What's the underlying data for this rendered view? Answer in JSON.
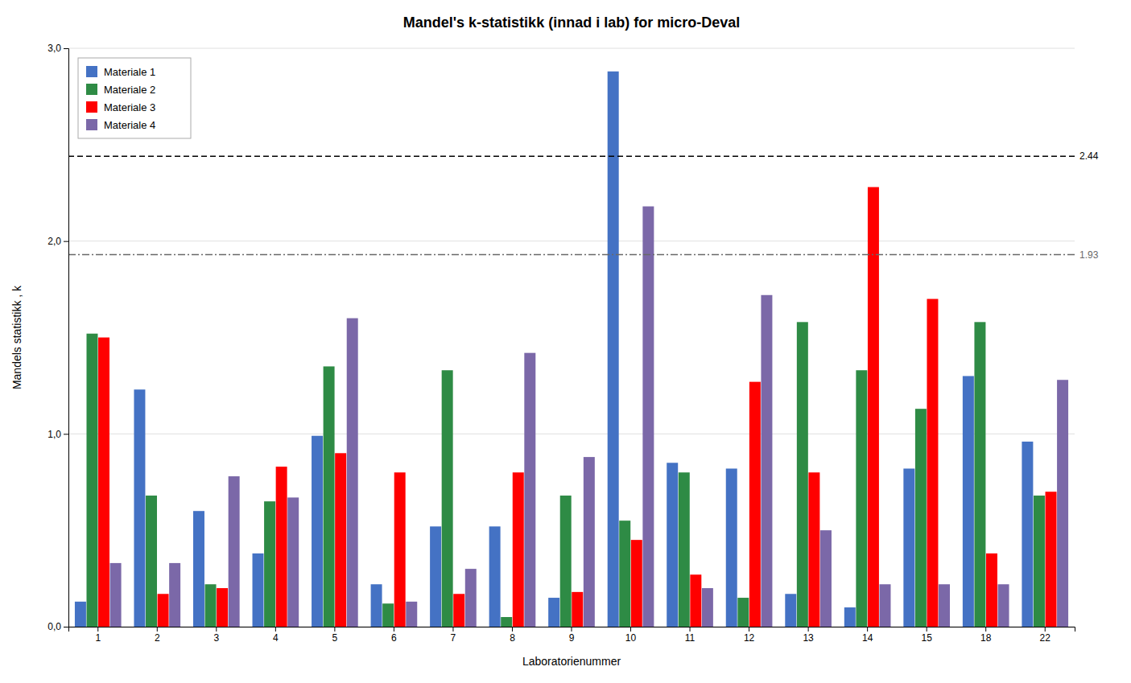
{
  "chart_data": {
    "type": "bar",
    "title": "Mandel's k-statistikk (innad i lab) for micro-Deval",
    "xlabel": "Laboratorienummer",
    "ylabel": "Mandels statistikk , k",
    "categories": [
      1,
      2,
      3,
      4,
      5,
      6,
      7,
      8,
      9,
      10,
      11,
      12,
      13,
      14,
      15,
      18,
      22
    ],
    "series": [
      {
        "name": "Materiale 1",
        "color": "#4472C4",
        "values": [
          0.13,
          1.23,
          0.6,
          0.38,
          0.99,
          0.22,
          0.52,
          0.52,
          0.15,
          2.88,
          0.85,
          0.82,
          0.17,
          0.1,
          0.82,
          1.3,
          0.96
        ]
      },
      {
        "name": "Materiale 2",
        "color": "#2E8B45",
        "values": [
          1.52,
          0.68,
          0.22,
          0.65,
          1.35,
          0.12,
          1.33,
          0.05,
          0.68,
          0.55,
          0.8,
          0.15,
          1.58,
          1.33,
          1.13,
          1.58,
          0.68
        ]
      },
      {
        "name": "Materiale 3",
        "color": "#FF0000",
        "values": [
          1.5,
          0.17,
          0.2,
          0.83,
          0.9,
          0.8,
          0.17,
          0.8,
          0.18,
          0.45,
          0.27,
          1.27,
          0.8,
          2.28,
          1.7,
          0.38,
          0.7
        ]
      },
      {
        "name": "Materiale 4",
        "color": "#7B68A8",
        "values": [
          0.33,
          0.33,
          0.78,
          0.67,
          1.6,
          0.13,
          0.3,
          1.42,
          0.88,
          2.18,
          0.2,
          1.72,
          0.5,
          0.22,
          0.22,
          0.22,
          1.28
        ]
      }
    ],
    "hlines": [
      {
        "value": 2.44,
        "color": "black",
        "line_style": "dashed"
      },
      {
        "value": 1.93,
        "color": "dimgray",
        "line_style": "dashdot"
      }
    ],
    "ylim": [
      0.0,
      3.0
    ],
    "yticks": [
      {
        "value": 0.0,
        "label": "0,0"
      },
      {
        "value": 1.0,
        "label": "1,0"
      },
      {
        "value": 2.0,
        "label": "2,0"
      },
      {
        "value": 3.0,
        "label": "3,0"
      }
    ],
    "grid": true,
    "legend": "upper left"
  }
}
